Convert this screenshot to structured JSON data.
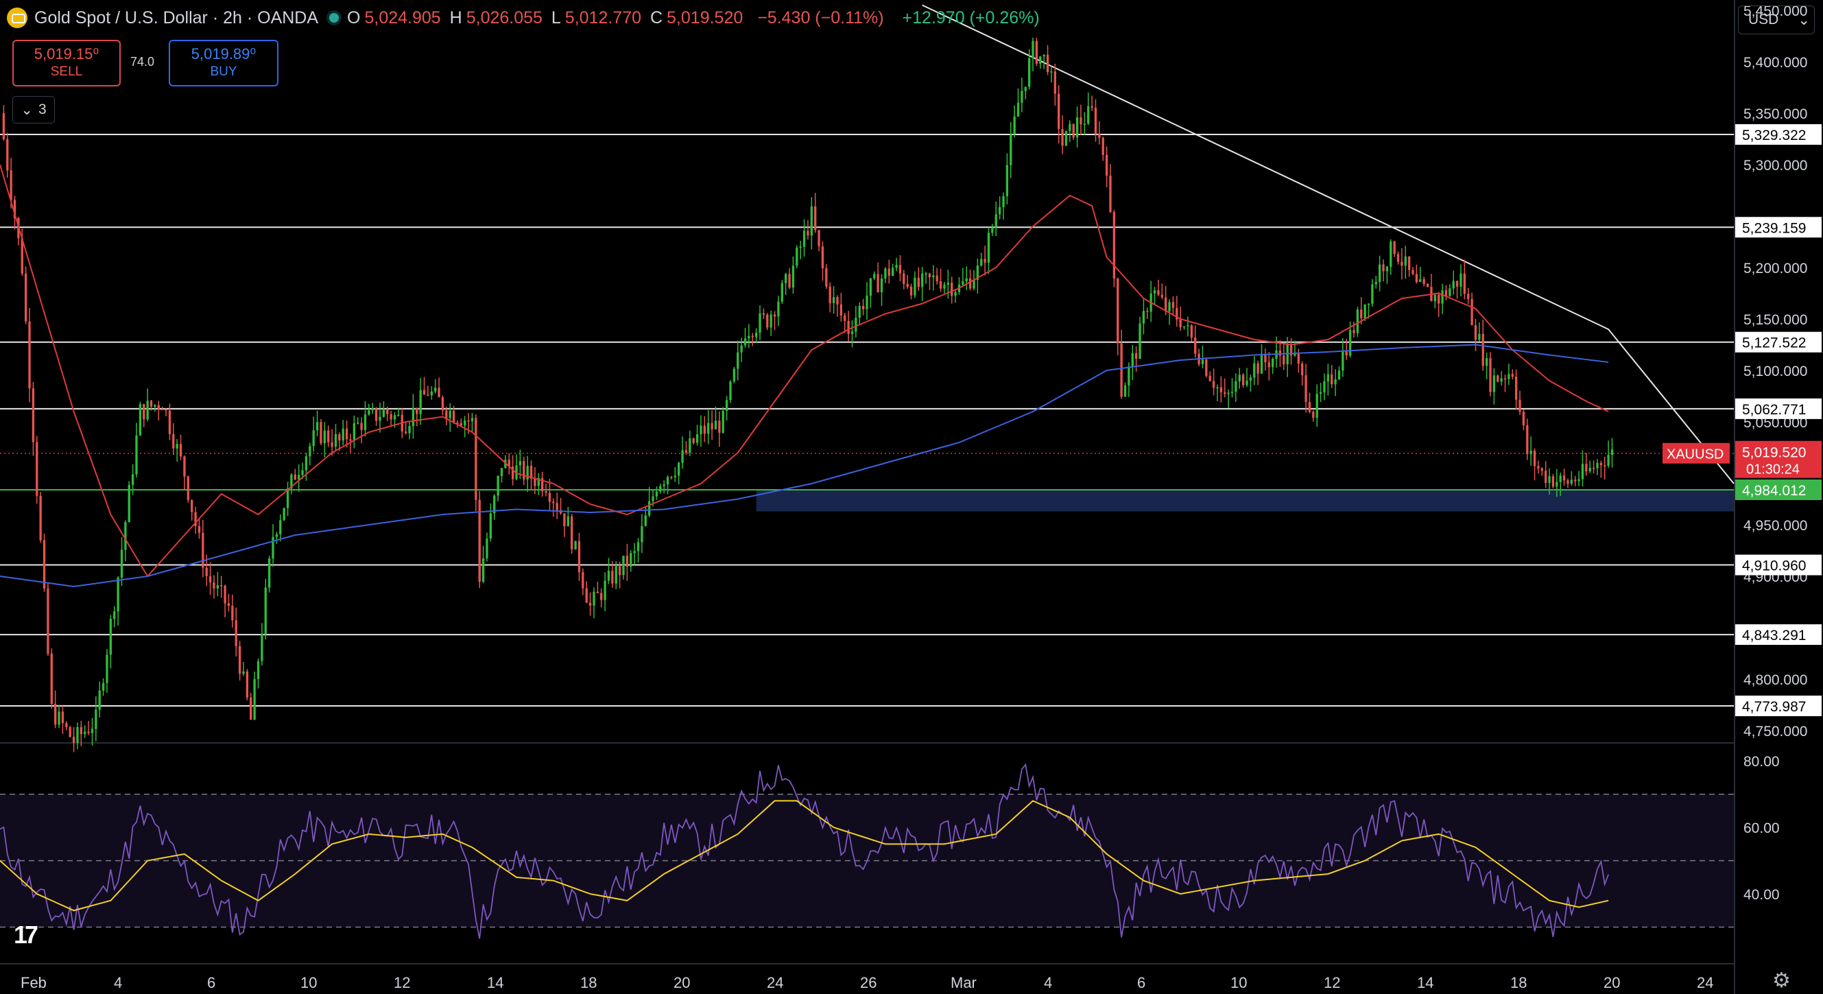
{
  "header": {
    "title": "Gold Spot / U.S. Dollar · 2h · OANDA",
    "o_key": "O",
    "o_val": "5,024.905",
    "h_key": "H",
    "h_val": "5,026.055",
    "l_key": "L",
    "l_val": "5,012.770",
    "c_key": "C",
    "c_val": "5,019.520",
    "change": "−5.430 (−0.11%)",
    "change2": "+12.970 (+0.26%)"
  },
  "trade": {
    "sell_price": "5,019.15⁰",
    "sell_label": "SELL",
    "buy_price": "5,019.89⁰",
    "buy_label": "BUY",
    "spread": "74.0"
  },
  "indicators_toggle": "3",
  "currency": "USD",
  "colors": {
    "up": "#2ebd3a",
    "down": "#e8544f",
    "ma_fast": "#e03a3a",
    "ma_slow": "#3b62e0",
    "rsi": "#7e57c2",
    "rsi_ma": "#f5d020",
    "hline": "#e6e6e6",
    "zone": "#1b2a55",
    "support": "#3bb54a",
    "price_tag": "#e0313a"
  },
  "chart_data": {
    "type": "candlestick",
    "symbol": "XAUUSD",
    "timeframe": "2h",
    "y_ticks": [
      "5,450.000",
      "5,400.000",
      "5,350.000",
      "5,300.000",
      "5,200.000",
      "5,150.000",
      "5,100.000",
      "5,050.000",
      "4,950.000",
      "4,900.000",
      "4,800.000",
      "4,750.000"
    ],
    "ylim": [
      4740,
      5460
    ],
    "x_ticks": [
      "Feb",
      "4",
      "6",
      "10",
      "12",
      "14",
      "18",
      "20",
      "24",
      "26",
      "Mar",
      "4",
      "6",
      "10",
      "12",
      "14",
      "18",
      "20",
      "24"
    ],
    "horizontal_levels": [
      "5,329.322",
      "5,239.159",
      "5,127.522",
      "5,062.771",
      "4,910.960",
      "4,843.291",
      "4,773.987"
    ],
    "support_level": "4,984.012",
    "current_price": "5,019.520",
    "countdown": "01:30:24",
    "ticker_label": "XAUUSD",
    "demand_zone": [
      4963,
      4984
    ],
    "close_path": [
      [
        0,
        5350
      ],
      [
        6,
        5200
      ],
      [
        14,
        4770
      ],
      [
        20,
        4740
      ],
      [
        26,
        4760
      ],
      [
        32,
        4900
      ],
      [
        38,
        5060
      ],
      [
        44,
        5070
      ],
      [
        50,
        5000
      ],
      [
        56,
        4900
      ],
      [
        62,
        4870
      ],
      [
        68,
        4760
      ],
      [
        74,
        4940
      ],
      [
        80,
        5000
      ],
      [
        86,
        5040
      ],
      [
        92,
        5030
      ],
      [
        98,
        5050
      ],
      [
        104,
        5060
      ],
      [
        110,
        5050
      ],
      [
        116,
        5080
      ],
      [
        122,
        5060
      ],
      [
        128,
        5050
      ],
      [
        130,
        4900
      ],
      [
        136,
        5010
      ],
      [
        142,
        5000
      ],
      [
        148,
        4990
      ],
      [
        154,
        4950
      ],
      [
        160,
        4870
      ],
      [
        166,
        4900
      ],
      [
        172,
        4920
      ],
      [
        178,
        4990
      ],
      [
        184,
        5010
      ],
      [
        190,
        5040
      ],
      [
        196,
        5050
      ],
      [
        202,
        5140
      ],
      [
        208,
        5150
      ],
      [
        214,
        5190
      ],
      [
        220,
        5250
      ],
      [
        224,
        5180
      ],
      [
        230,
        5140
      ],
      [
        236,
        5180
      ],
      [
        242,
        5200
      ],
      [
        248,
        5180
      ],
      [
        254,
        5190
      ],
      [
        260,
        5180
      ],
      [
        266,
        5200
      ],
      [
        272,
        5280
      ],
      [
        276,
        5360
      ],
      [
        280,
        5410
      ],
      [
        284,
        5400
      ],
      [
        288,
        5320
      ],
      [
        292,
        5340
      ],
      [
        296,
        5350
      ],
      [
        300,
        5300
      ],
      [
        304,
        5080
      ],
      [
        308,
        5120
      ],
      [
        312,
        5180
      ],
      [
        316,
        5160
      ],
      [
        320,
        5150
      ],
      [
        326,
        5110
      ],
      [
        332,
        5070
      ],
      [
        338,
        5100
      ],
      [
        344,
        5110
      ],
      [
        350,
        5120
      ],
      [
        356,
        5060
      ],
      [
        362,
        5100
      ],
      [
        368,
        5150
      ],
      [
        374,
        5200
      ],
      [
        378,
        5220
      ],
      [
        384,
        5180
      ],
      [
        390,
        5170
      ],
      [
        396,
        5190
      ],
      [
        400,
        5140
      ],
      [
        404,
        5090
      ],
      [
        410,
        5100
      ],
      [
        414,
        5020
      ],
      [
        418,
        5000
      ],
      [
        424,
        4990
      ],
      [
        430,
        5000
      ],
      [
        436,
        5019
      ]
    ],
    "ma_fast_path": [
      [
        0,
        5300
      ],
      [
        10,
        5180
      ],
      [
        20,
        5060
      ],
      [
        30,
        4960
      ],
      [
        40,
        4900
      ],
      [
        50,
        4940
      ],
      [
        60,
        4980
      ],
      [
        70,
        4960
      ],
      [
        80,
        4990
      ],
      [
        90,
        5020
      ],
      [
        100,
        5040
      ],
      [
        110,
        5050
      ],
      [
        120,
        5055
      ],
      [
        128,
        5040
      ],
      [
        140,
        5000
      ],
      [
        150,
        4990
      ],
      [
        160,
        4970
      ],
      [
        170,
        4960
      ],
      [
        180,
        4975
      ],
      [
        190,
        4990
      ],
      [
        200,
        5020
      ],
      [
        210,
        5070
      ],
      [
        220,
        5120
      ],
      [
        230,
        5140
      ],
      [
        240,
        5155
      ],
      [
        250,
        5165
      ],
      [
        260,
        5180
      ],
      [
        270,
        5200
      ],
      [
        280,
        5240
      ],
      [
        290,
        5270
      ],
      [
        296,
        5260
      ],
      [
        300,
        5210
      ],
      [
        310,
        5170
      ],
      [
        320,
        5150
      ],
      [
        330,
        5140
      ],
      [
        340,
        5130
      ],
      [
        350,
        5125
      ],
      [
        360,
        5130
      ],
      [
        370,
        5150
      ],
      [
        380,
        5170
      ],
      [
        390,
        5175
      ],
      [
        400,
        5160
      ],
      [
        410,
        5120
      ],
      [
        420,
        5090
      ],
      [
        430,
        5070
      ],
      [
        436,
        5060
      ]
    ],
    "ma_slow_path": [
      [
        0,
        4900
      ],
      [
        20,
        4890
      ],
      [
        40,
        4900
      ],
      [
        60,
        4920
      ],
      [
        80,
        4940
      ],
      [
        100,
        4950
      ],
      [
        120,
        4960
      ],
      [
        140,
        4965
      ],
      [
        160,
        4962
      ],
      [
        180,
        4965
      ],
      [
        200,
        4975
      ],
      [
        220,
        4990
      ],
      [
        240,
        5010
      ],
      [
        260,
        5030
      ],
      [
        280,
        5060
      ],
      [
        300,
        5100
      ],
      [
        320,
        5110
      ],
      [
        340,
        5115
      ],
      [
        360,
        5118
      ],
      [
        380,
        5122
      ],
      [
        400,
        5125
      ],
      [
        420,
        5115
      ],
      [
        436,
        5108
      ]
    ],
    "trendline": [
      [
        250,
        5455
      ],
      [
        436,
        5140
      ],
      [
        470,
        4990
      ]
    ],
    "rsi": {
      "y_ticks": [
        "80.00",
        "60.00",
        "40.00"
      ],
      "ylim": [
        20,
        85
      ],
      "upper": 70,
      "middle": 50,
      "lower": 30,
      "path": [
        [
          0,
          58
        ],
        [
          8,
          42
        ],
        [
          14,
          34
        ],
        [
          20,
          33
        ],
        [
          28,
          40
        ],
        [
          34,
          52
        ],
        [
          38,
          63
        ],
        [
          42,
          60
        ],
        [
          48,
          50
        ],
        [
          54,
          42
        ],
        [
          60,
          36
        ],
        [
          66,
          30
        ],
        [
          72,
          45
        ],
        [
          78,
          55
        ],
        [
          84,
          60
        ],
        [
          90,
          58
        ],
        [
          96,
          57
        ],
        [
          102,
          62
        ],
        [
          108,
          55
        ],
        [
          114,
          58
        ],
        [
          120,
          60
        ],
        [
          126,
          55
        ],
        [
          130,
          30
        ],
        [
          136,
          47
        ],
        [
          142,
          50
        ],
        [
          148,
          45
        ],
        [
          154,
          40
        ],
        [
          160,
          34
        ],
        [
          166,
          42
        ],
        [
          172,
          45
        ],
        [
          178,
          55
        ],
        [
          184,
          60
        ],
        [
          190,
          55
        ],
        [
          196,
          58
        ],
        [
          202,
          68
        ],
        [
          208,
          75
        ],
        [
          212,
          78
        ],
        [
          216,
          70
        ],
        [
          222,
          62
        ],
        [
          228,
          56
        ],
        [
          234,
          52
        ],
        [
          240,
          56
        ],
        [
          246,
          55
        ],
        [
          252,
          54
        ],
        [
          258,
          58
        ],
        [
          264,
          60
        ],
        [
          270,
          62
        ],
        [
          276,
          75
        ],
        [
          280,
          74
        ],
        [
          284,
          70
        ],
        [
          290,
          63
        ],
        [
          296,
          60
        ],
        [
          300,
          52
        ],
        [
          304,
          30
        ],
        [
          310,
          44
        ],
        [
          316,
          47
        ],
        [
          322,
          45
        ],
        [
          328,
          40
        ],
        [
          334,
          37
        ],
        [
          340,
          45
        ],
        [
          346,
          50
        ],
        [
          352,
          46
        ],
        [
          358,
          50
        ],
        [
          364,
          52
        ],
        [
          370,
          58
        ],
        [
          376,
          66
        ],
        [
          380,
          62
        ],
        [
          386,
          58
        ],
        [
          392,
          55
        ],
        [
          398,
          48
        ],
        [
          404,
          42
        ],
        [
          410,
          40
        ],
        [
          416,
          33
        ],
        [
          422,
          30
        ],
        [
          428,
          40
        ],
        [
          432,
          46
        ],
        [
          436,
          44
        ]
      ],
      "ma_path": [
        [
          0,
          50
        ],
        [
          10,
          40
        ],
        [
          20,
          35
        ],
        [
          30,
          38
        ],
        [
          40,
          50
        ],
        [
          50,
          52
        ],
        [
          60,
          44
        ],
        [
          70,
          38
        ],
        [
          80,
          46
        ],
        [
          90,
          55
        ],
        [
          100,
          58
        ],
        [
          110,
          57
        ],
        [
          120,
          58
        ],
        [
          128,
          54
        ],
        [
          140,
          45
        ],
        [
          150,
          44
        ],
        [
          160,
          40
        ],
        [
          170,
          38
        ],
        [
          180,
          46
        ],
        [
          190,
          52
        ],
        [
          200,
          58
        ],
        [
          210,
          68
        ],
        [
          216,
          68
        ],
        [
          226,
          60
        ],
        [
          240,
          55
        ],
        [
          256,
          55
        ],
        [
          270,
          58
        ],
        [
          280,
          68
        ],
        [
          290,
          63
        ],
        [
          300,
          52
        ],
        [
          310,
          44
        ],
        [
          320,
          40
        ],
        [
          330,
          42
        ],
        [
          340,
          44
        ],
        [
          350,
          45
        ],
        [
          360,
          46
        ],
        [
          370,
          50
        ],
        [
          380,
          56
        ],
        [
          390,
          58
        ],
        [
          400,
          54
        ],
        [
          410,
          46
        ],
        [
          420,
          38
        ],
        [
          428,
          36
        ],
        [
          436,
          38
        ]
      ]
    }
  }
}
